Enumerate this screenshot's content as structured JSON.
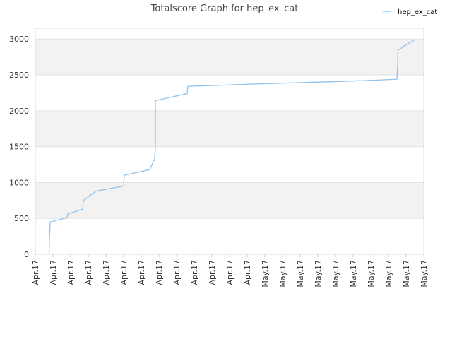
{
  "chart_data": {
    "type": "line",
    "title": "Totalscore Graph for hep_ex_cat",
    "xlim": [
      0,
      22
    ],
    "xticks": [
      {
        "value": 0,
        "label": "Apr.17"
      },
      {
        "value": 1,
        "label": "Apr.17"
      },
      {
        "value": 2,
        "label": "Apr.17"
      },
      {
        "value": 3,
        "label": "Apr.17"
      },
      {
        "value": 4,
        "label": "Apr.17"
      },
      {
        "value": 5,
        "label": "Apr.17"
      },
      {
        "value": 6,
        "label": "Apr.17"
      },
      {
        "value": 7,
        "label": "Apr.17"
      },
      {
        "value": 8,
        "label": "Apr.17"
      },
      {
        "value": 9,
        "label": "Apr.17"
      },
      {
        "value": 10,
        "label": "Apr.17"
      },
      {
        "value": 11,
        "label": "Apr.17"
      },
      {
        "value": 12,
        "label": "Apr.17"
      },
      {
        "value": 13,
        "label": "May.17"
      },
      {
        "value": 14,
        "label": "May.17"
      },
      {
        "value": 15,
        "label": "May.17"
      },
      {
        "value": 16,
        "label": "May.17"
      },
      {
        "value": 17,
        "label": "May.17"
      },
      {
        "value": 18,
        "label": "May.17"
      },
      {
        "value": 19,
        "label": "May.17"
      },
      {
        "value": 20,
        "label": "May.17"
      },
      {
        "value": 21,
        "label": "May.17"
      },
      {
        "value": 22,
        "label": "May.17"
      }
    ],
    "ylim": [
      0,
      3150
    ],
    "yticks": [
      0,
      500,
      1000,
      1500,
      2000,
      2500,
      3000
    ],
    "grid": true,
    "legend": "top-right",
    "series": [
      {
        "name": "hep_ex_cat",
        "color": "#8ec3ef",
        "x": [
          0.78,
          0.8,
          0.84,
          1.8,
          1.84,
          2.68,
          2.72,
          3.44,
          5.0,
          5.04,
          6.48,
          6.76,
          6.8,
          6.8,
          8.6,
          8.64,
          9.2,
          10.4,
          12.0,
          14.0,
          16.0,
          18.0,
          19.6,
          20.48,
          20.52,
          20.54,
          20.68,
          20.8,
          21.48
        ],
        "values": [
          0,
          220,
          450,
          510,
          560,
          630,
          750,
          880,
          950,
          1100,
          1180,
          1330,
          1500,
          2140,
          2240,
          2340,
          2345,
          2355,
          2370,
          2385,
          2400,
          2415,
          2430,
          2440,
          2620,
          2850,
          2860,
          2890,
          2990
        ]
      }
    ]
  }
}
